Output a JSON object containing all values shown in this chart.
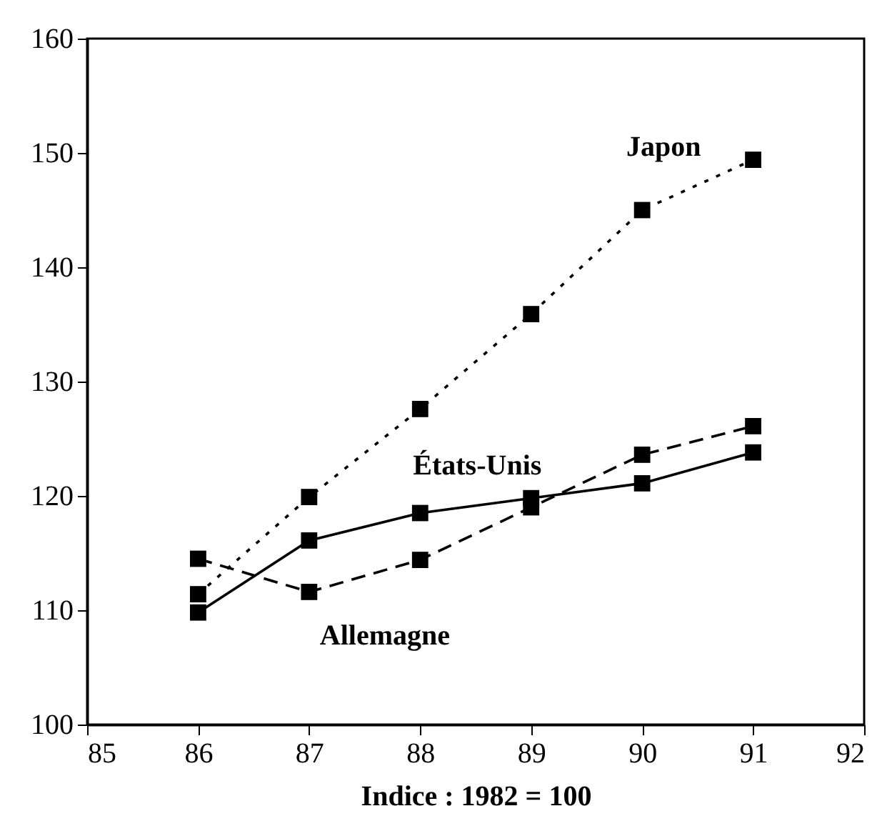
{
  "chart_data": {
    "type": "line",
    "xlabel": "Indice : 1982 = 100",
    "x": [
      86,
      87,
      88,
      89,
      90,
      91
    ],
    "series": [
      {
        "name": "Japon",
        "color": "#000000",
        "line_style": "dotted",
        "values": [
          111.4,
          119.9,
          127.6,
          135.9,
          145.0,
          149.4
        ]
      },
      {
        "name": "États-Unis",
        "color": "#000000",
        "line_style": "solid",
        "values": [
          109.8,
          116.1,
          118.5,
          119.8,
          121.1,
          123.8
        ]
      },
      {
        "name": "Allemagne",
        "color": "#000000",
        "line_style": "dashed",
        "values": [
          114.5,
          111.6,
          114.4,
          119.0,
          123.6,
          126.1
        ]
      }
    ],
    "xlim": [
      85,
      92
    ],
    "xticks": [
      85,
      86,
      87,
      88,
      89,
      90,
      91,
      92
    ],
    "ylim": [
      100,
      160
    ],
    "yticks": [
      100,
      110,
      120,
      130,
      140,
      150,
      160
    ],
    "marker": "square",
    "grid": false,
    "legend": false
  }
}
